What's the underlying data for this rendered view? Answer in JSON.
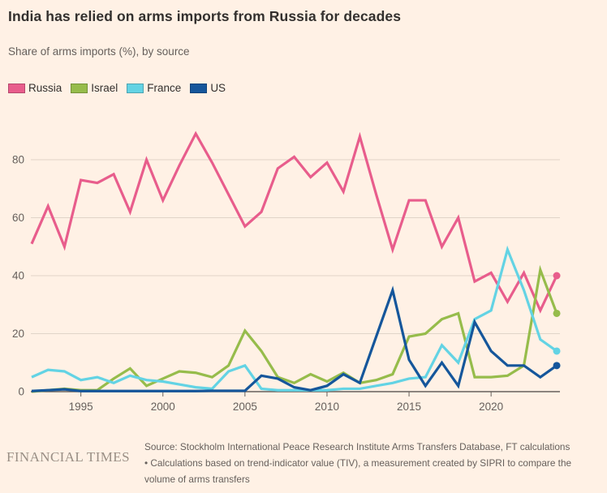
{
  "header": {
    "title": "India has relied on arms imports from Russia for decades",
    "subtitle": "Share of arms imports (%), by source"
  },
  "legend": [
    {
      "label": "Russia",
      "color": "#e85d8c"
    },
    {
      "label": "Israel",
      "color": "#96bc4b"
    },
    {
      "label": "France",
      "color": "#63d3e4"
    },
    {
      "label": "US",
      "color": "#15569b"
    }
  ],
  "footer": {
    "brand": "FINANCIAL TIMES",
    "source_lines": [
      "Source: Stockholm International Peace Research Institute Arms Transfers Database, FT calculations",
      "• Calculations based on trend-indicator value (TIV), a measurement created by SIPRI to compare the",
      "volume of arms transfers"
    ]
  },
  "chart_data": {
    "type": "line",
    "title": "India has relied on arms imports from Russia for decades",
    "ylabel": "Share of arms imports (%)",
    "x": [
      1992,
      1993,
      1994,
      1995,
      1996,
      1997,
      1998,
      1999,
      2000,
      2001,
      2002,
      2003,
      2004,
      2005,
      2006,
      2007,
      2008,
      2009,
      2010,
      2011,
      2012,
      2013,
      2014,
      2015,
      2016,
      2017,
      2018,
      2019,
      2020,
      2021,
      2022,
      2023,
      2024
    ],
    "x_tick_labels": [
      "1995",
      "2000",
      "2005",
      "2010",
      "2015",
      "2020"
    ],
    "x_tick_years": [
      1995,
      2000,
      2005,
      2010,
      2015,
      2020
    ],
    "y_ticks": [
      0,
      20,
      40,
      60,
      80
    ],
    "ylim": [
      0,
      92
    ],
    "grid": "horizontal",
    "legend_position": "top",
    "axis_color": "#66605c",
    "gridline_color": "#e0d4c8",
    "series": [
      {
        "name": "Russia",
        "color": "#e85d8c",
        "values": [
          51,
          64,
          50,
          73,
          72,
          75,
          62,
          80,
          66,
          78,
          89,
          79,
          68,
          57,
          62,
          77,
          81,
          74,
          79,
          69,
          88,
          68,
          49,
          66,
          66,
          50,
          60,
          38,
          41,
          31,
          41,
          28,
          40
        ]
      },
      {
        "name": "Israel",
        "color": "#96bc4b",
        "values": [
          0,
          0.5,
          1,
          0.5,
          0.5,
          4.5,
          8,
          2,
          4.5,
          7,
          6.5,
          5,
          9,
          21,
          14,
          5,
          3,
          6,
          3.5,
          6.5,
          3,
          4,
          6,
          19,
          20,
          25,
          27,
          5,
          5,
          5.5,
          9,
          42,
          27
        ]
      },
      {
        "name": "France",
        "color": "#63d3e4",
        "values": [
          5,
          7.5,
          7,
          4,
          5,
          3,
          5.5,
          4,
          3.5,
          2.5,
          1.5,
          1,
          7,
          9,
          1,
          0.5,
          0.5,
          0.5,
          0.5,
          1,
          1,
          2,
          3,
          4.5,
          5,
          16,
          10,
          25,
          28,
          49,
          35,
          18,
          14
        ]
      },
      {
        "name": "US",
        "color": "#15569b",
        "values": [
          0.2,
          0.5,
          0.8,
          0.2,
          0.2,
          0.2,
          0.2,
          0.2,
          0.2,
          0.2,
          0.2,
          0.3,
          0.3,
          0.3,
          5.5,
          4.5,
          1.5,
          0.5,
          2,
          6,
          3,
          19,
          35,
          11,
          2,
          10,
          2,
          24,
          14,
          9,
          9,
          5,
          9
        ]
      }
    ]
  }
}
